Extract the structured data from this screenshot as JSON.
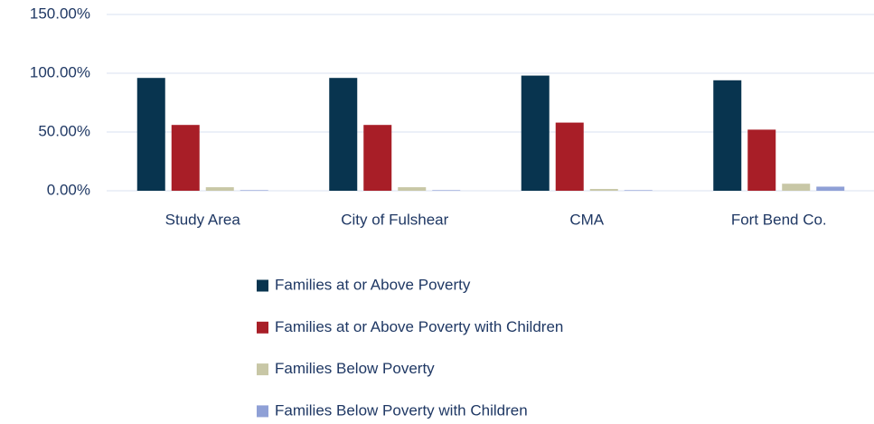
{
  "chart_data": {
    "type": "bar",
    "categories": [
      "Study  Area",
      "City of Fulshear",
      "CMA",
      "Fort Bend Co."
    ],
    "series": [
      {
        "name": "Families at or Above Poverty",
        "color": "#08344f",
        "values": [
          96,
          96,
          98,
          94
        ]
      },
      {
        "name": "Families at or Above Poverty with Children",
        "color": "#a81e27",
        "values": [
          56,
          56,
          58,
          52
        ]
      },
      {
        "name": "Families Below Poverty",
        "color": "#c8c7a6",
        "values": [
          3,
          3,
          1.5,
          6
        ]
      },
      {
        "name": "Families Below Poverty with Children",
        "color": "#8fa0d6",
        "values": [
          0.5,
          0.5,
          0.5,
          3.5
        ]
      }
    ],
    "ylim": [
      0,
      150
    ],
    "yticks": [
      {
        "value": 0,
        "label": "0.00%"
      },
      {
        "value": 50,
        "label": "50.00%"
      },
      {
        "value": 100,
        "label": "100.00%"
      },
      {
        "value": 150,
        "label": "150.00%"
      }
    ],
    "grid": true
  }
}
